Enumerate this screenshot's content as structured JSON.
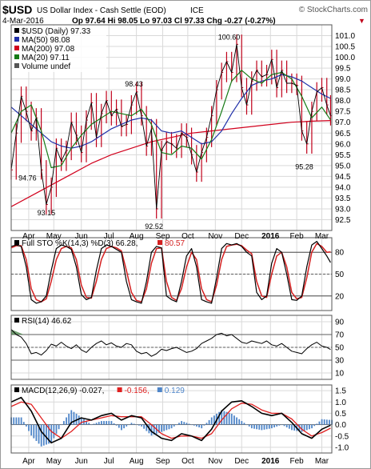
{
  "header": {
    "symbol": "$USD",
    "name": "US Dollar Index - Cash Settle (EOD)",
    "exchange": "ICE",
    "watermark": "© StockCharts.com",
    "date": "4-Mar-2016",
    "quote": "Op 97.64 Hi 98.05 Lo 97.03 Cl 97.33 Chg -0.27 (-0.27%)",
    "quote_arrow": "▼"
  },
  "colors": {
    "price": "#c0001a",
    "ma50": "#1f2fa8",
    "ma200": "#d1001c",
    "ma20": "#157a15",
    "k_line": "#000000",
    "d_line": "#d42020",
    "rsi": "#000000",
    "macd": "#000000",
    "signal": "#e02020",
    "hist": "#4f86c9",
    "grid": "#d9d9d9"
  },
  "chart_data": [
    {
      "type": "line",
      "panel": "price",
      "legend": [
        {
          "label": "$USD (Daily) 97.33",
          "color": "#000000"
        },
        {
          "label": "MA(50) 98.08",
          "color": "#1f2fa8"
        },
        {
          "label": "MA(200) 97.08",
          "color": "#d1001c"
        },
        {
          "label": "MA(20) 97.11",
          "color": "#157a15"
        },
        {
          "label": "Volume undef",
          "color": "#555555"
        }
      ],
      "ylim": [
        92.0,
        101.5
      ],
      "y_ticks": [
        "92.5",
        "93.0",
        "93.5",
        "94.0",
        "94.5",
        "95.0",
        "95.5",
        "96.0",
        "96.5",
        "97.0",
        "97.5",
        "98.0",
        "98.5",
        "99.0",
        "99.5",
        "100.0",
        "100.5",
        "101.0"
      ],
      "x_labels": [
        "Apr",
        "May",
        "Jun",
        "Jul",
        "Aug",
        "Sep",
        "Oct",
        "Nov",
        "Dec",
        "2016",
        "Feb",
        "Mar"
      ],
      "x_label_pos": [
        14,
        34,
        56,
        78,
        100,
        121,
        141,
        163,
        184,
        207,
        228,
        248
      ],
      "x_max": 256,
      "annotations": [
        {
          "text": "94.76",
          "x": 2,
          "y": 94.76
        },
        {
          "text": "93.15",
          "x": 28,
          "y": 93.15
        },
        {
          "text": "98.43",
          "x": 98,
          "y": 98.43
        },
        {
          "text": "92.52",
          "x": 114,
          "y": 92.52
        },
        {
          "text": "100.60",
          "x": 174,
          "y": 100.6
        },
        {
          "text": "95.28",
          "x": 234,
          "y": 95.28
        }
      ],
      "series": [
        {
          "name": "$USD (Daily)",
          "kind": "ohlc",
          "x": [
            0,
            4,
            8,
            12,
            16,
            20,
            24,
            28,
            32,
            36,
            40,
            44,
            48,
            52,
            56,
            60,
            64,
            68,
            72,
            76,
            80,
            84,
            88,
            92,
            96,
            100,
            104,
            108,
            112,
            116,
            120,
            124,
            128,
            132,
            136,
            140,
            144,
            148,
            152,
            156,
            160,
            164,
            168,
            172,
            176,
            180,
            184,
            188,
            192,
            196,
            200,
            204,
            208,
            212,
            216,
            220,
            224,
            228,
            232,
            236,
            240,
            244,
            248,
            252,
            255
          ],
          "y": [
            94.8,
            96.5,
            98.2,
            97.5,
            96.6,
            97.2,
            94.8,
            93.2,
            94.0,
            95.8,
            95.2,
            95.7,
            97.0,
            96.4,
            95.6,
            97.1,
            97.9,
            96.3,
            97.4,
            98.0,
            97.3,
            97.6,
            96.8,
            96.9,
            97.8,
            98.4,
            97.3,
            95.9,
            96.7,
            93.0,
            95.7,
            96.1,
            96.0,
            95.8,
            96.5,
            96.3,
            95.5,
            94.7,
            95.6,
            96.3,
            97.3,
            98.5,
            99.3,
            99.8,
            99.3,
            100.6,
            98.6,
            97.8,
            98.9,
            99.4,
            99.1,
            99.2,
            99.9,
            98.6,
            99.4,
            98.8,
            98.8,
            98.7,
            96.6,
            96.0,
            97.5,
            98.4,
            98.6,
            97.8,
            97.3
          ]
        },
        {
          "name": "MA(50)",
          "kind": "line",
          "x": [
            0,
            8,
            16,
            24,
            32,
            40,
            48,
            56,
            64,
            72,
            80,
            88,
            96,
            104,
            112,
            120,
            128,
            136,
            144,
            152,
            160,
            168,
            176,
            184,
            192,
            200,
            208,
            216,
            224,
            232,
            240,
            248,
            255
          ],
          "y": [
            97.7,
            97.3,
            96.9,
            96.5,
            96.1,
            95.9,
            95.8,
            95.9,
            96.1,
            96.4,
            96.7,
            96.9,
            97.1,
            97.2,
            97.1,
            96.6,
            96.5,
            96.6,
            96.3,
            96.0,
            96.1,
            96.6,
            97.4,
            98.1,
            98.7,
            98.9,
            99.0,
            99.2,
            99.1,
            98.9,
            98.6,
            98.3,
            98.1
          ]
        },
        {
          "name": "MA(200)",
          "kind": "line",
          "x": [
            0,
            16,
            32,
            48,
            64,
            80,
            96,
            112,
            128,
            144,
            160,
            176,
            192,
            208,
            224,
            240,
            255
          ],
          "y": [
            93.1,
            93.6,
            94.1,
            94.6,
            95.1,
            95.5,
            95.8,
            96.1,
            96.3,
            96.5,
            96.6,
            96.7,
            96.8,
            96.9,
            97.0,
            97.05,
            97.08
          ]
        },
        {
          "name": "MA(20)",
          "kind": "line",
          "x": [
            0,
            8,
            16,
            24,
            32,
            40,
            48,
            56,
            64,
            72,
            80,
            88,
            96,
            104,
            112,
            120,
            128,
            136,
            144,
            152,
            160,
            168,
            176,
            184,
            192,
            200,
            208,
            216,
            224,
            232,
            240,
            248,
            255
          ],
          "y": [
            96.5,
            97.5,
            97.8,
            96.6,
            94.9,
            95.0,
            95.8,
            96.4,
            96.9,
            97.2,
            97.5,
            97.4,
            97.3,
            97.6,
            96.9,
            95.6,
            95.5,
            95.9,
            95.8,
            95.3,
            96.2,
            97.5,
            98.9,
            99.4,
            99.0,
            98.8,
            99.2,
            99.3,
            99.0,
            98.2,
            97.2,
            97.7,
            97.11
          ]
        }
      ]
    },
    {
      "type": "line",
      "panel": "stochastic",
      "legend": [
        {
          "label": "Full STO %K(14,3) %D(3) 66.28,",
          "color": "#000000"
        },
        {
          "label": "80.57",
          "color": "#d42020"
        }
      ],
      "ylim": [
        0,
        100
      ],
      "y_ticks": [
        "20",
        "50",
        "80"
      ],
      "levels": [
        20,
        50,
        80
      ],
      "series": [
        {
          "name": "%K",
          "x": [
            0,
            4,
            8,
            12,
            16,
            20,
            24,
            28,
            32,
            36,
            40,
            44,
            48,
            52,
            56,
            60,
            64,
            68,
            72,
            76,
            80,
            84,
            88,
            92,
            96,
            100,
            104,
            108,
            112,
            116,
            120,
            124,
            128,
            132,
            136,
            140,
            144,
            148,
            152,
            156,
            160,
            164,
            168,
            172,
            176,
            180,
            184,
            188,
            192,
            196,
            200,
            204,
            208,
            212,
            216,
            220,
            224,
            228,
            232,
            236,
            240,
            244,
            248,
            252,
            255
          ],
          "y": [
            88,
            90,
            88,
            60,
            15,
            10,
            12,
            20,
            55,
            85,
            90,
            88,
            84,
            60,
            22,
            15,
            18,
            55,
            85,
            90,
            88,
            84,
            80,
            40,
            15,
            12,
            10,
            40,
            80,
            88,
            86,
            20,
            15,
            12,
            40,
            75,
            85,
            60,
            15,
            12,
            10,
            45,
            85,
            92,
            90,
            92,
            88,
            80,
            75,
            25,
            15,
            20,
            65,
            85,
            80,
            50,
            15,
            14,
            20,
            60,
            90,
            95,
            85,
            75,
            66
          ]
        },
        {
          "name": "%D",
          "x": [
            0,
            4,
            8,
            12,
            16,
            20,
            24,
            28,
            32,
            36,
            40,
            44,
            48,
            52,
            56,
            60,
            64,
            68,
            72,
            76,
            80,
            84,
            88,
            92,
            96,
            100,
            104,
            108,
            112,
            116,
            120,
            124,
            128,
            132,
            136,
            140,
            144,
            148,
            152,
            156,
            160,
            164,
            168,
            172,
            176,
            180,
            184,
            188,
            192,
            196,
            200,
            204,
            208,
            212,
            216,
            220,
            224,
            228,
            232,
            236,
            240,
            244,
            248,
            252,
            255
          ],
          "y": [
            86,
            89,
            89,
            70,
            30,
            15,
            12,
            16,
            40,
            70,
            85,
            88,
            86,
            70,
            35,
            18,
            17,
            40,
            70,
            85,
            88,
            86,
            82,
            55,
            25,
            14,
            12,
            30,
            65,
            85,
            86,
            40,
            18,
            14,
            30,
            60,
            80,
            70,
            30,
            15,
            12,
            35,
            70,
            88,
            90,
            91,
            89,
            83,
            78,
            40,
            20,
            18,
            50,
            75,
            80,
            60,
            25,
            16,
            18,
            45,
            80,
            92,
            88,
            80,
            80.57
          ]
        }
      ]
    },
    {
      "type": "line",
      "panel": "rsi",
      "legend": [
        {
          "label": "RSI(14) 46.62",
          "color": "#000000"
        }
      ],
      "ylim": [
        0,
        100
      ],
      "y_ticks": [
        "10",
        "30",
        "50",
        "70",
        "90"
      ],
      "levels": [
        30,
        50,
        70
      ],
      "series": [
        {
          "name": "RSI(14)",
          "x": [
            0,
            4,
            8,
            12,
            16,
            20,
            24,
            28,
            32,
            36,
            40,
            44,
            48,
            52,
            56,
            60,
            64,
            68,
            72,
            76,
            80,
            84,
            88,
            92,
            96,
            100,
            104,
            108,
            112,
            116,
            120,
            124,
            128,
            132,
            136,
            140,
            144,
            148,
            152,
            156,
            160,
            164,
            168,
            172,
            176,
            180,
            184,
            188,
            192,
            196,
            200,
            204,
            208,
            212,
            216,
            220,
            224,
            228,
            232,
            236,
            240,
            244,
            248,
            252,
            255
          ],
          "y": [
            78,
            70,
            66,
            56,
            40,
            42,
            38,
            45,
            55,
            52,
            58,
            52,
            48,
            54,
            46,
            42,
            50,
            56,
            60,
            54,
            57,
            52,
            50,
            56,
            54,
            44,
            40,
            42,
            36,
            40,
            47,
            45,
            48,
            50,
            46,
            42,
            44,
            48,
            56,
            60,
            64,
            70,
            72,
            68,
            70,
            64,
            58,
            56,
            60,
            58,
            56,
            60,
            54,
            52,
            56,
            50,
            44,
            42,
            40,
            48,
            54,
            58,
            52,
            50,
            46.62
          ]
        }
      ]
    },
    {
      "type": "line",
      "panel": "macd",
      "legend": [
        {
          "label": "MACD(12,26,9) -0.027,",
          "color": "#000000"
        },
        {
          "label": "-0.156,",
          "color": "#e02020"
        },
        {
          "label": "0.129",
          "color": "#4f86c9"
        }
      ],
      "ylim": [
        -1.25,
        1.75
      ],
      "y_ticks": [
        "-1.0",
        "-0.5",
        "0.0",
        "0.5",
        "1.0",
        "1.5"
      ],
      "series": [
        {
          "name": "MACD",
          "x": [
            0,
            8,
            16,
            24,
            32,
            40,
            48,
            56,
            64,
            72,
            80,
            88,
            96,
            104,
            112,
            120,
            128,
            136,
            144,
            152,
            160,
            168,
            176,
            184,
            192,
            200,
            208,
            216,
            224,
            232,
            240,
            248,
            255
          ],
          "y": [
            1.0,
            1.2,
            0.6,
            -0.3,
            -0.8,
            -0.6,
            0.1,
            0.3,
            0.2,
            0.4,
            0.5,
            0.2,
            0.4,
            0.3,
            -0.3,
            -0.6,
            -0.7,
            -0.4,
            -0.5,
            -0.7,
            -0.2,
            0.6,
            1.0,
            1.05,
            0.8,
            0.5,
            0.4,
            0.5,
            0.1,
            -0.4,
            -0.6,
            -0.2,
            -0.027
          ]
        },
        {
          "name": "Signal",
          "x": [
            0,
            8,
            16,
            24,
            32,
            40,
            48,
            56,
            64,
            72,
            80,
            88,
            96,
            104,
            112,
            120,
            128,
            136,
            144,
            152,
            160,
            168,
            176,
            184,
            192,
            200,
            208,
            216,
            224,
            232,
            240,
            248,
            255
          ],
          "y": [
            0.8,
            1.0,
            0.9,
            0.3,
            -0.3,
            -0.6,
            -0.3,
            0.1,
            0.2,
            0.3,
            0.4,
            0.35,
            0.35,
            0.35,
            0.0,
            -0.4,
            -0.6,
            -0.5,
            -0.5,
            -0.6,
            -0.4,
            0.2,
            0.7,
            0.95,
            0.9,
            0.65,
            0.5,
            0.5,
            0.25,
            -0.2,
            -0.5,
            -0.35,
            -0.156
          ]
        }
      ]
    }
  ]
}
